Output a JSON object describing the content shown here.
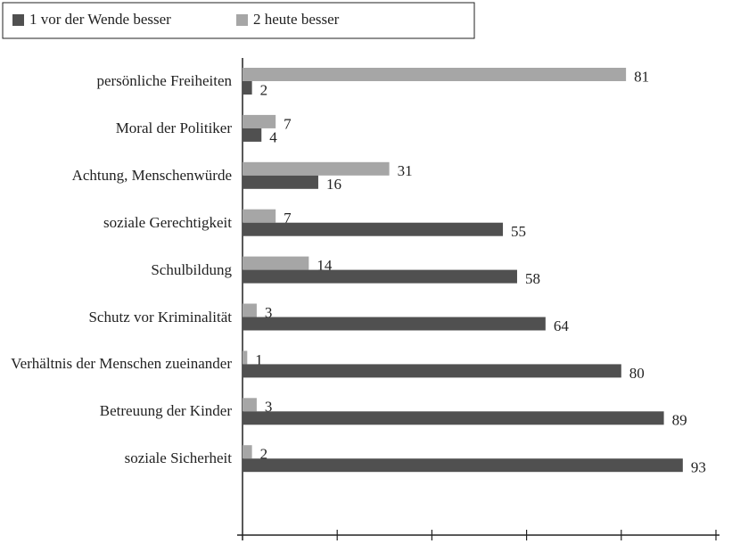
{
  "chart_data": {
    "type": "bar",
    "orientation": "horizontal",
    "categories": [
      "persönliche Freiheiten",
      "Moral der Politiker",
      "Achtung, Menschenwürde",
      "soziale Gerechtigkeit",
      "Schulbildung",
      "Schutz vor Kriminalität",
      "Verhältnis der Menschen zueinander",
      "Betreuung der Kinder",
      "soziale Sicherheit"
    ],
    "series": [
      {
        "name": "1 vor der Wende besser",
        "color": "#505050",
        "values": [
          2,
          4,
          16,
          55,
          58,
          64,
          80,
          89,
          93
        ]
      },
      {
        "name": "2 heute besser",
        "color": "#a6a6a6",
        "values": [
          81,
          7,
          31,
          7,
          14,
          3,
          1,
          3,
          2
        ]
      }
    ],
    "xlim": [
      0,
      100
    ],
    "xticks": [
      20,
      40,
      60,
      80,
      100
    ],
    "legend": "top-left"
  }
}
